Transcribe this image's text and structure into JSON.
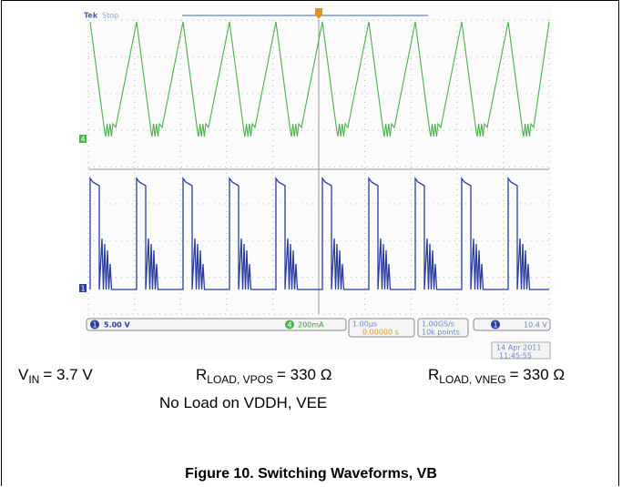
{
  "scope": {
    "brand": "Tek",
    "status": "Stop",
    "ch4_label": "4",
    "ch1_label": "1",
    "ch1_scale": "5.00 V",
    "ch4_scale": "200mA",
    "timebase": "1.00µs",
    "trigger_position": "0.00000 s",
    "sample_rate": "1.00GS/s",
    "record_length": "10k points",
    "trigger_level": "10.4 V",
    "date": "14 Apr 2011",
    "time": "11:45:55"
  },
  "conditions": [
    {
      "symbol": "V",
      "subscript": "IN",
      "value": "= 3.7 V"
    },
    {
      "symbol": "R",
      "subscript": "LOAD, VPOS",
      "value": "= 330 Ω"
    },
    {
      "symbol": "R",
      "subscript": "LOAD, VNEG",
      "value": "= 330 Ω"
    }
  ],
  "note": "No Load on VDDH, VEE",
  "caption": "Figure 10. Switching Waveforms, VB"
}
